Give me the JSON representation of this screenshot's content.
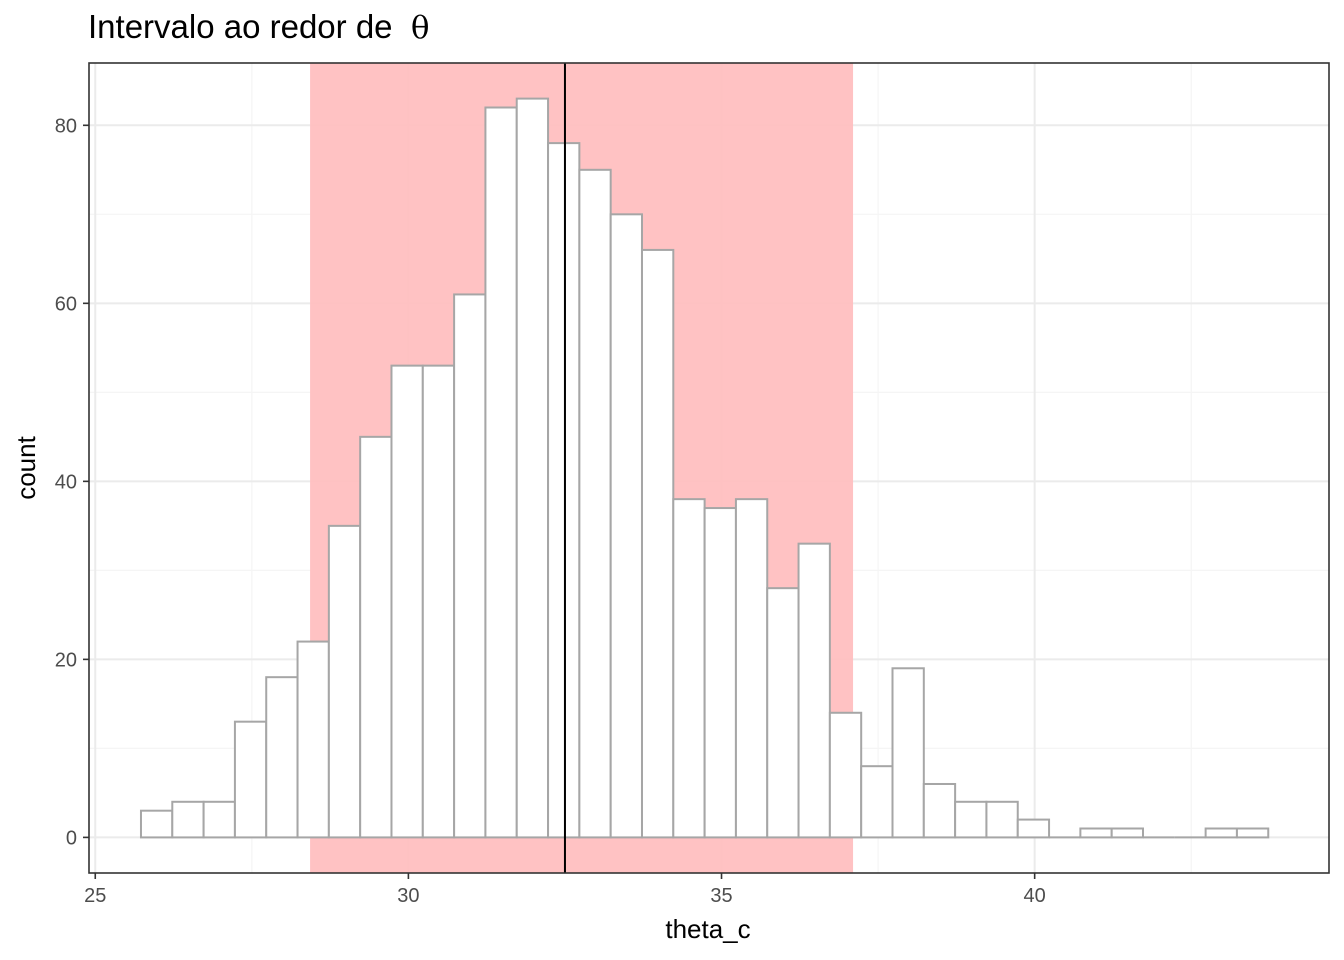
{
  "chart_data": {
    "type": "bar",
    "title": "Intervalo ao redor de",
    "title_symbol": "θ",
    "xlabel": "theta_c",
    "ylabel": "count",
    "xlim": [
      24.9,
      44.7
    ],
    "ylim": [
      -4,
      87
    ],
    "xticks": [
      25,
      30,
      35,
      40
    ],
    "xtick_labels": [
      "25",
      "30",
      "35",
      "40"
    ],
    "yticks": [
      0,
      20,
      40,
      60,
      80
    ],
    "ytick_labels": [
      "0",
      "20",
      "40",
      "60",
      "80"
    ],
    "grid": true,
    "bin_width": 0.5,
    "bins_start": 25.73,
    "values": [
      3,
      4,
      4,
      13,
      18,
      22,
      35,
      45,
      53,
      53,
      61,
      82,
      83,
      78,
      75,
      70,
      66,
      38,
      37,
      38,
      28,
      33,
      14,
      8,
      19,
      6,
      4,
      4,
      2,
      0,
      1,
      1,
      0,
      0,
      1,
      1
    ],
    "interval": [
      28.43,
      37.1
    ],
    "vline": 32.5,
    "colors": {
      "interval_fill": "#ffbfc0",
      "bar_fill": "#ffffff",
      "bar_stroke": "#a6a6a6",
      "grid_major": "#ebebeb",
      "grid_minor": "#f5f5f5",
      "panel_border": "#333333",
      "vline": "#000000"
    }
  }
}
